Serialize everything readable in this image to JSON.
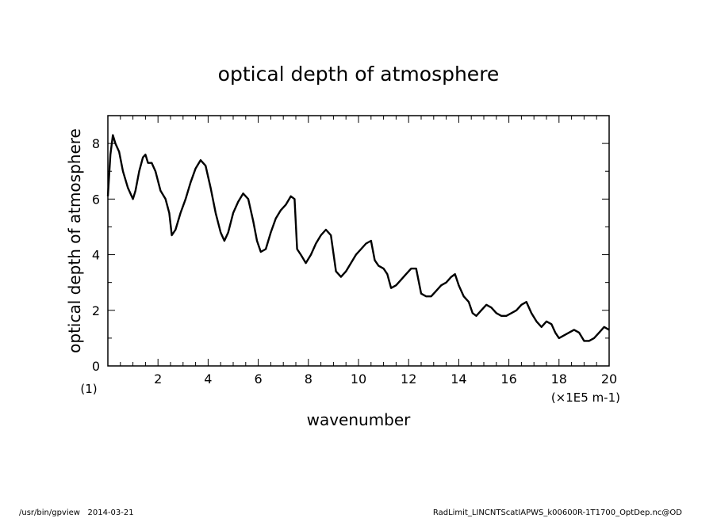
{
  "chart_data": {
    "type": "line",
    "title": "optical depth of atmosphere",
    "xlabel": "wavenumber",
    "ylabel": "optical depth of atmosphere",
    "x_unit": "(×1E5 m-1)",
    "y_unit": "(1)",
    "xlim": [
      0,
      20
    ],
    "ylim": [
      0,
      9
    ],
    "x_ticks": [
      2,
      4,
      6,
      8,
      10,
      12,
      14,
      16,
      18,
      20
    ],
    "y_ticks": [
      0,
      2,
      4,
      6,
      8
    ],
    "grid": false,
    "legend": "none",
    "line_color": "#000000",
    "series": [
      {
        "x": [
          0.0,
          0.1,
          0.2,
          0.3,
          0.45,
          0.6,
          0.8,
          1.0,
          1.1,
          1.25,
          1.4,
          1.5,
          1.6,
          1.75,
          1.9,
          2.1,
          2.3,
          2.45,
          2.55,
          2.7,
          2.9,
          3.1,
          3.3,
          3.5,
          3.7,
          3.9,
          4.1,
          4.3,
          4.5,
          4.65,
          4.8,
          5.0,
          5.2,
          5.4,
          5.6,
          5.8,
          5.95,
          6.1,
          6.3,
          6.5,
          6.7,
          6.9,
          7.1,
          7.3,
          7.45,
          7.55,
          7.7,
          7.9,
          8.1,
          8.3,
          8.5,
          8.7,
          8.9,
          9.1,
          9.3,
          9.5,
          9.7,
          9.9,
          10.1,
          10.3,
          10.5,
          10.65,
          10.8,
          11.0,
          11.15,
          11.3,
          11.5,
          11.7,
          11.9,
          12.1,
          12.3,
          12.5,
          12.7,
          12.9,
          13.1,
          13.3,
          13.5,
          13.7,
          13.85,
          14.0,
          14.2,
          14.4,
          14.55,
          14.7,
          14.9,
          15.1,
          15.3,
          15.5,
          15.7,
          15.9,
          16.1,
          16.3,
          16.5,
          16.7,
          16.9,
          17.1,
          17.3,
          17.5,
          17.7,
          17.85,
          18.0,
          18.2,
          18.4,
          18.6,
          18.8,
          19.0,
          19.2,
          19.4,
          19.6,
          19.8,
          20.0
        ],
        "y": [
          6.1,
          7.6,
          8.3,
          8.0,
          7.7,
          7.0,
          6.4,
          6.0,
          6.3,
          7.0,
          7.5,
          7.6,
          7.3,
          7.3,
          7.0,
          6.3,
          6.0,
          5.5,
          4.7,
          4.9,
          5.5,
          6.0,
          6.6,
          7.1,
          7.4,
          7.2,
          6.4,
          5.5,
          4.8,
          4.5,
          4.8,
          5.5,
          5.9,
          6.2,
          6.0,
          5.2,
          4.5,
          4.1,
          4.2,
          4.8,
          5.3,
          5.6,
          5.8,
          6.1,
          6.0,
          4.2,
          4.0,
          3.7,
          4.0,
          4.4,
          4.7,
          4.9,
          4.7,
          3.4,
          3.2,
          3.4,
          3.7,
          4.0,
          4.2,
          4.4,
          4.5,
          3.8,
          3.6,
          3.5,
          3.3,
          2.8,
          2.9,
          3.1,
          3.3,
          3.5,
          3.5,
          2.6,
          2.5,
          2.5,
          2.7,
          2.9,
          3.0,
          3.2,
          3.3,
          2.9,
          2.5,
          2.3,
          1.9,
          1.8,
          2.0,
          2.2,
          2.1,
          1.9,
          1.8,
          1.8,
          1.9,
          2.0,
          2.2,
          2.3,
          1.9,
          1.6,
          1.4,
          1.6,
          1.5,
          1.2,
          1.0,
          1.1,
          1.2,
          1.3,
          1.2,
          0.9,
          0.9,
          1.0,
          1.2,
          1.4,
          1.3
        ]
      }
    ]
  },
  "footer": {
    "left": "/usr/bin/gpview   2014-03-21",
    "right": "RadLimit_LINCNTScatIAPWS_k00600R-1T1700_OptDep.nc@OD"
  }
}
